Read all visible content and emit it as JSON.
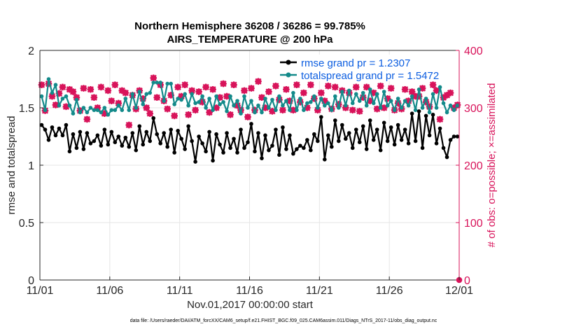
{
  "chart_data": {
    "type": "line",
    "title_line1": "Northern Hemisphere 36208 / 36286 = 99.785%",
    "title_line2": "AIRS_TEMPERATURE @ 200 hPa",
    "ylabel": "rmse and totalspread",
    "ylabel_right": "# of obs: o=possible; ×=assimilated",
    "xlabel": "Nov.01,2017 00:00:00 start",
    "footer": "data file: /Users/raeder/DAI/ATM_forcXX/CAM6_setup/f.e21.FHIST_BGC.f09_025.CAM6assim.011/Diags_NTrS_2017-11/obs_diag_output.nc",
    "xlim": [
      0,
      30
    ],
    "ylim": [
      0,
      2
    ],
    "ylim_right": [
      0,
      400
    ],
    "x_ticks": [
      0,
      5,
      10,
      15,
      20,
      25,
      30
    ],
    "x_tick_labels": [
      "11/01",
      "11/06",
      "11/11",
      "11/16",
      "11/21",
      "11/26",
      "12/01"
    ],
    "y_ticks": [
      0,
      0.5,
      1,
      1.5,
      2
    ],
    "y_tick_labels": [
      "0",
      "0.5",
      "1",
      "1.5",
      "2"
    ],
    "y_right_ticks": [
      0,
      100,
      200,
      300,
      400
    ],
    "y_right_tick_labels": [
      "0",
      "100",
      "200",
      "300",
      "400"
    ],
    "x": [
      0.125,
      0.375,
      0.625,
      0.875,
      1.125,
      1.375,
      1.625,
      1.875,
      2.125,
      2.375,
      2.625,
      2.875,
      3.125,
      3.375,
      3.625,
      3.875,
      4.125,
      4.375,
      4.625,
      4.875,
      5.125,
      5.375,
      5.625,
      5.875,
      6.125,
      6.375,
      6.625,
      6.875,
      7.125,
      7.375,
      7.625,
      7.875,
      8.125,
      8.375,
      8.625,
      8.875,
      9.125,
      9.375,
      9.625,
      9.875,
      10.125,
      10.375,
      10.625,
      10.875,
      11.125,
      11.375,
      11.625,
      11.875,
      12.125,
      12.375,
      12.625,
      12.875,
      13.125,
      13.375,
      13.625,
      13.875,
      14.125,
      14.375,
      14.625,
      14.875,
      15.125,
      15.375,
      15.625,
      15.875,
      16.125,
      16.375,
      16.625,
      16.875,
      17.125,
      17.375,
      17.625,
      17.875,
      18.125,
      18.375,
      18.625,
      18.875,
      19.125,
      19.375,
      19.625,
      19.875,
      20.125,
      20.375,
      20.625,
      20.875,
      21.125,
      21.375,
      21.625,
      21.875,
      22.125,
      22.375,
      22.625,
      22.875,
      23.125,
      23.375,
      23.625,
      23.875,
      24.125,
      24.375,
      24.625,
      24.875,
      25.125,
      25.375,
      25.625,
      25.875,
      26.125,
      26.375,
      26.625,
      26.875,
      27.125,
      27.375,
      27.625,
      27.875,
      28.125,
      28.375,
      28.625,
      28.875,
      29.125,
      29.375,
      29.625,
      29.875
    ],
    "series": [
      {
        "name": "rmse grand pr = 1.2307",
        "axis": "left",
        "color": "#000000",
        "values": [
          1.35,
          1.31,
          1.22,
          1.33,
          1.26,
          1.32,
          1.26,
          1.35,
          1.12,
          1.27,
          1.15,
          1.29,
          1.14,
          1.28,
          1.19,
          1.21,
          1.26,
          1.17,
          1.31,
          1.18,
          1.29,
          1.2,
          1.25,
          1.17,
          1.24,
          1.16,
          1.28,
          1.13,
          1.34,
          1.18,
          1.29,
          1.21,
          1.41,
          1.27,
          1.19,
          1.28,
          1.16,
          1.31,
          1.11,
          1.3,
          1.23,
          1.14,
          1.34,
          1.21,
          1.03,
          1.25,
          1.19,
          1.12,
          1.29,
          1.04,
          1.27,
          1.18,
          1.11,
          1.28,
          1.15,
          1.23,
          1.11,
          1.31,
          1.15,
          1.2,
          1.36,
          1.12,
          1.28,
          1.06,
          1.26,
          1.13,
          1.17,
          1.31,
          1.09,
          1.33,
          1.14,
          1.26,
          1.1,
          1.14,
          1.17,
          1.15,
          1.22,
          1.13,
          1.27,
          1.21,
          1.42,
          1.05,
          1.26,
          1.16,
          1.39,
          1.21,
          1.35,
          1.23,
          1.28,
          1.15,
          1.31,
          1.2,
          1.34,
          1.14,
          1.39,
          1.22,
          1.31,
          1.13,
          1.37,
          1.21,
          1.33,
          1.18,
          1.35,
          1.22,
          1.31,
          1.19,
          1.45,
          1.21,
          1.47,
          1.15,
          1.43,
          1.26,
          1.44,
          1.19,
          1.32,
          1.15,
          1.07,
          1.22,
          1.25,
          1.25
        ]
      },
      {
        "name": "totalspread grand pr = 1.5472",
        "axis": "left",
        "color": "#138a8a",
        "values": [
          1.6,
          1.48,
          1.75,
          1.63,
          1.7,
          1.52,
          1.58,
          1.6,
          1.52,
          1.45,
          1.57,
          1.46,
          1.5,
          1.46,
          1.5,
          1.48,
          1.48,
          1.46,
          1.5,
          1.44,
          1.48,
          1.48,
          1.52,
          1.48,
          1.58,
          1.48,
          1.62,
          1.5,
          1.64,
          1.53,
          1.62,
          1.63,
          1.72,
          1.72,
          1.72,
          1.56,
          1.71,
          1.71,
          1.53,
          1.58,
          1.57,
          1.62,
          1.52,
          1.62,
          1.54,
          1.55,
          1.6,
          1.5,
          1.58,
          1.48,
          1.6,
          1.53,
          1.55,
          1.47,
          1.6,
          1.52,
          1.56,
          1.45,
          1.6,
          1.5,
          1.56,
          1.46,
          1.52,
          1.46,
          1.58,
          1.5,
          1.57,
          1.48,
          1.6,
          1.52,
          1.56,
          1.48,
          1.63,
          1.48,
          1.58,
          1.48,
          1.54,
          1.55,
          1.6,
          1.5,
          1.58,
          1.52,
          1.54,
          1.48,
          1.6,
          1.5,
          1.64,
          1.52,
          1.65,
          1.54,
          1.62,
          1.56,
          1.63,
          1.52,
          1.66,
          1.54,
          1.62,
          1.5,
          1.64,
          1.52,
          1.56,
          1.48,
          1.58,
          1.5,
          1.56,
          1.52,
          1.6,
          1.48,
          1.66,
          1.5,
          1.58,
          1.46,
          1.62,
          1.5,
          1.68,
          1.54,
          1.46,
          1.52,
          1.48,
          1.52
        ]
      },
      {
        "name": "obs possible",
        "axis": "right",
        "color": "#d8135a",
        "marker": "o",
        "values": [
          340,
          295,
          342,
          320,
          305,
          325,
          336,
          302,
          332,
          328,
          318,
          295,
          334,
          280,
          332,
          318,
          300,
          336,
          290,
          330,
          312,
          340,
          308,
          330,
          326,
          270,
          322,
          298,
          330,
          316,
          300,
          290,
          352,
          318,
          340,
          312,
          298,
          322,
          286,
          336,
          320,
          340,
          288,
          330,
          296,
          328,
          310,
          336,
          292,
          332,
          300,
          318,
          342,
          320,
          288,
          340,
          304,
          296,
          330,
          284,
          334,
          296,
          346,
          318,
          300,
          328,
          294,
          338,
          314,
          296,
          332,
          312,
          296,
          340,
          310,
          326,
          300,
          340,
          316,
          296,
          326,
          312,
          338,
          298,
          336,
          306,
          330,
          300,
          326,
          296,
          336,
          294,
          318,
          336,
          312,
          326,
          298,
          338,
          300,
          316,
          334,
          296,
          308,
          298,
          332,
          312,
          328,
          320,
          320,
          334,
          310,
          302,
          340,
          330,
          280,
          318,
          322,
          326,
          300,
          305
        ]
      },
      {
        "name": "obs assimilated",
        "axis": "right",
        "color": "#d8135a",
        "marker": "x",
        "values": [
          340,
          295,
          342,
          320,
          305,
          325,
          336,
          302,
          332,
          328,
          318,
          295,
          334,
          280,
          332,
          318,
          300,
          336,
          290,
          330,
          312,
          340,
          308,
          330,
          326,
          270,
          322,
          298,
          330,
          316,
          300,
          290,
          352,
          318,
          340,
          312,
          298,
          322,
          286,
          336,
          320,
          340,
          288,
          330,
          296,
          328,
          310,
          336,
          292,
          332,
          300,
          318,
          342,
          320,
          288,
          340,
          304,
          296,
          330,
          284,
          334,
          296,
          346,
          318,
          300,
          328,
          294,
          338,
          314,
          296,
          332,
          312,
          296,
          340,
          310,
          326,
          300,
          340,
          316,
          296,
          326,
          312,
          338,
          298,
          336,
          306,
          330,
          300,
          326,
          296,
          336,
          294,
          318,
          336,
          312,
          326,
          298,
          338,
          300,
          316,
          334,
          296,
          308,
          298,
          332,
          312,
          328,
          320,
          320,
          334,
          310,
          302,
          340,
          330,
          280,
          318,
          322,
          326,
          300,
          305
        ]
      }
    ],
    "extra_obs_point": {
      "x": 30,
      "value": 0
    },
    "legend_location": "top-right"
  }
}
